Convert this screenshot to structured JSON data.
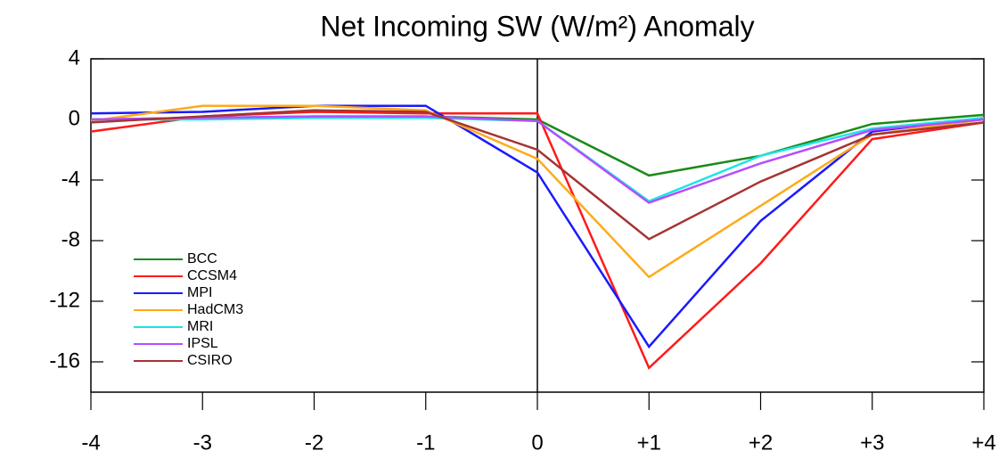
{
  "chart_data": {
    "type": "line",
    "title": "Net Incoming SW (W/m²) Anomaly",
    "x": [
      -4,
      -3,
      -2,
      -1,
      0,
      1,
      2,
      3,
      4
    ],
    "xlim": [
      -4,
      4
    ],
    "xticks": [
      -4,
      -3,
      -2,
      -1,
      0,
      {
        "value": 1,
        "label": "+1"
      },
      {
        "value": 2,
        "label": "+2"
      },
      {
        "value": 3,
        "label": "+3"
      },
      {
        "value": 4,
        "label": "+4"
      }
    ],
    "ylim": [
      -18,
      4
    ],
    "yticks": [
      4,
      0,
      -4,
      -8,
      -12,
      -16
    ],
    "legend": "lower-left",
    "series": [
      {
        "name": "BCC",
        "color": "#1a8a1a",
        "values": [
          0.0,
          0.1,
          0.2,
          0.2,
          0.0,
          -3.7,
          -2.4,
          -0.3,
          0.3
        ]
      },
      {
        "name": "CCSM4",
        "color": "#ff1a1a",
        "values": [
          -0.8,
          0.2,
          0.5,
          0.4,
          0.4,
          -16.4,
          -9.5,
          -1.3,
          -0.2
        ]
      },
      {
        "name": "MPI",
        "color": "#1a1aff",
        "values": [
          0.4,
          0.5,
          0.9,
          0.9,
          -3.5,
          -15.0,
          -6.7,
          -0.8,
          0.1
        ]
      },
      {
        "name": "HadCM3",
        "color": "#ffaa1a",
        "values": [
          -0.1,
          0.9,
          0.9,
          0.6,
          -2.6,
          -10.4,
          -5.7,
          -1.0,
          0.0
        ]
      },
      {
        "name": "MRI",
        "color": "#1ae6e6",
        "values": [
          0.0,
          0.0,
          0.1,
          0.1,
          -0.1,
          -5.4,
          -2.4,
          -0.6,
          0.1
        ]
      },
      {
        "name": "IPSL",
        "color": "#b44dff",
        "values": [
          0.0,
          0.1,
          0.2,
          0.2,
          -0.1,
          -5.5,
          -2.9,
          -0.7,
          0.0
        ]
      },
      {
        "name": "CSIRO",
        "color": "#a63333",
        "values": [
          -0.2,
          0.2,
          0.6,
          0.5,
          -2.0,
          -7.9,
          -4.1,
          -1.0,
          -0.2
        ]
      }
    ]
  }
}
